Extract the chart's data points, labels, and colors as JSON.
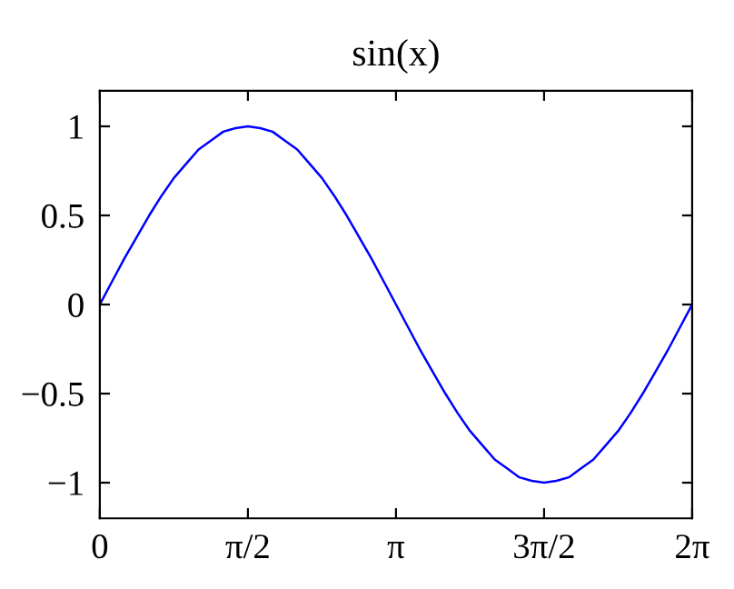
{
  "chart_data": {
    "type": "line",
    "title": "sin(x)",
    "x": [
      0,
      0.1309,
      0.2618,
      0.3927,
      0.5236,
      0.6545,
      0.7854,
      0.9163,
      1.0472,
      1.1781,
      1.309,
      1.4399,
      1.5708,
      1.7017,
      1.8326,
      1.9635,
      2.0944,
      2.2253,
      2.3562,
      2.4871,
      2.618,
      2.7489,
      2.8798,
      3.0107,
      3.1416,
      3.2725,
      3.4034,
      3.5343,
      3.6652,
      3.7961,
      3.927,
      4.0579,
      4.1888,
      4.3197,
      4.4506,
      4.5815,
      4.7124,
      4.8433,
      4.9742,
      5.1051,
      5.236,
      5.3669,
      5.4978,
      5.6287,
      5.7596,
      5.8905,
      6.0214,
      6.1523,
      6.2832
    ],
    "series": [
      {
        "color": "#0000ff",
        "values": [
          0,
          0.13,
          0.26,
          0.38,
          0.5,
          0.61,
          0.71,
          0.79,
          0.87,
          0.92,
          0.97,
          0.99,
          1,
          0.99,
          0.97,
          0.92,
          0.87,
          0.79,
          0.71,
          0.61,
          0.5,
          0.38,
          0.26,
          0.13,
          0,
          -0.13,
          -0.26,
          -0.38,
          -0.5,
          -0.61,
          -0.71,
          -0.79,
          -0.87,
          -0.92,
          -0.97,
          -0.99,
          -1,
          -0.99,
          -0.97,
          -0.92,
          -0.87,
          -0.79,
          -0.71,
          -0.61,
          -0.5,
          -0.38,
          -0.26,
          -0.13,
          0
        ]
      }
    ],
    "xlim": [
      0,
      6.2832
    ],
    "xticks": [
      0,
      {
        "value": 1.5708,
        "label": "π/2"
      },
      {
        "value": 3.1416,
        "label": "π"
      },
      {
        "value": 4.7124,
        "label": "3π/2"
      },
      {
        "value": 6.2832,
        "label": "2π"
      }
    ],
    "ylim": [
      -1.2,
      1.2
    ],
    "yticks": [
      {
        "value": -1,
        "label": "−1"
      },
      {
        "value": -0.5,
        "label": "−0.5"
      },
      0,
      0.5,
      1
    ],
    "grid": false,
    "marker": "none",
    "line_style": "solid"
  }
}
